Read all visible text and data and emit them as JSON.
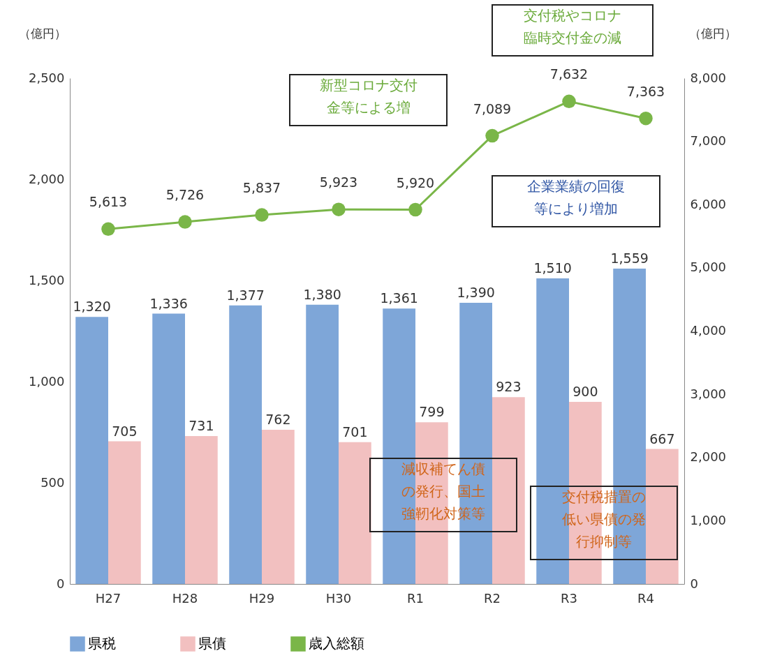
{
  "chart_data": {
    "type": "bar",
    "categories": [
      "H27",
      "H28",
      "H29",
      "H30",
      "R1",
      "R2",
      "R3",
      "R4"
    ],
    "series": [
      {
        "name": "県税",
        "color": "#7ea6d8",
        "values": [
          1320,
          1336,
          1377,
          1380,
          1361,
          1390,
          1510,
          1559
        ],
        "value_labels": [
          "1,320",
          "1,336",
          "1,377",
          "1,380",
          "1,361",
          "1,390",
          "1,510",
          "1,559"
        ]
      },
      {
        "name": "県債",
        "color": "#f2c0c0",
        "values": [
          705,
          731,
          762,
          701,
          799,
          923,
          900,
          667
        ],
        "value_labels": [
          "705",
          "731",
          "762",
          "701",
          "799",
          "923",
          "900",
          "667"
        ]
      },
      {
        "name": "歳入総額",
        "type": "line",
        "axis": "y2",
        "color": "#7ab648",
        "values": [
          5613,
          5726,
          5837,
          5923,
          5920,
          7089,
          7632,
          7363
        ],
        "value_labels": [
          "5,613",
          "5,726",
          "5,837",
          "5,923",
          "5,920",
          "7,089",
          "7,632",
          "7,363"
        ]
      }
    ],
    "ylabel": "（億円）",
    "y2label": "（億円）",
    "ylim": [
      0,
      2500
    ],
    "yticks": [
      0,
      500,
      {
        "value": 1000,
        "label": "1,000"
      },
      {
        "value": 1500,
        "label": "1,500"
      },
      {
        "value": 2000,
        "label": "2,000"
      },
      {
        "value": 2500,
        "label": "2,500"
      }
    ],
    "y2lim": [
      0,
      8000
    ],
    "y2ticks": [
      0,
      {
        "value": 1000,
        "label": "1,000"
      },
      {
        "value": 2000,
        "label": "2,000"
      },
      {
        "value": 3000,
        "label": "3,000"
      },
      {
        "value": 4000,
        "label": "4,000"
      },
      {
        "value": 5000,
        "label": "5,000"
      },
      {
        "value": 6000,
        "label": "6,000"
      },
      {
        "value": 7000,
        "label": "7,000"
      },
      {
        "value": 8000,
        "label": "8,000"
      }
    ],
    "annotations": [
      "新型コロナ交付金等による増",
      "交付税やコロナ臨時交付金の減",
      "企業業績の回復等により増加",
      "減収補てん債の発行、国土強靭化対策等",
      "交付税措置の低い県債の発行抑制等"
    ],
    "legend": "bottom",
    "grid": false,
    "marker": "circle",
    "line_style": "solid"
  }
}
